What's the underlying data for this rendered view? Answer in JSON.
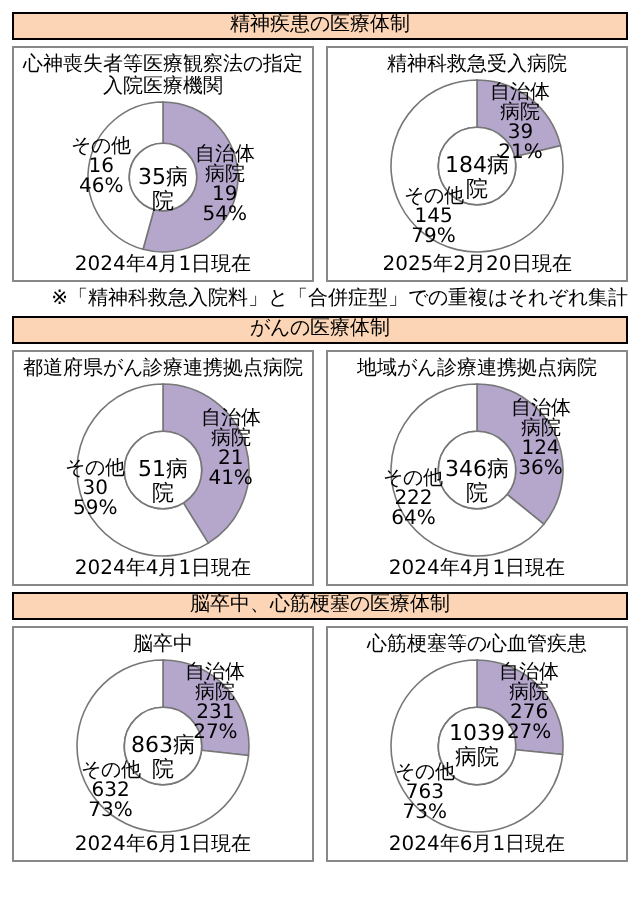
{
  "chart_data": [
    {
      "type": "donut",
      "title": "心神喪失者等医療観察法の指定",
      "subtitle": "入院医療機関",
      "categories": [
        "自治体病院",
        "その他"
      ],
      "values": [
        19,
        16
      ],
      "colors": [
        "#b5a6cc",
        "#ffffff"
      ],
      "value_labels": [
        "19\n54%",
        "16\n46%"
      ],
      "annotations": [
        "35病院",
        "2024年4月1日現在",
        "精神疾患の医療体制"
      ]
    },
    {
      "type": "donut",
      "title": "精神科救急受入病院",
      "categories": [
        "自治体病院",
        "その他"
      ],
      "values": [
        39,
        145
      ],
      "colors": [
        "#b5a6cc",
        "#ffffff"
      ],
      "value_labels": [
        "39\n21%",
        "145\n79%"
      ],
      "annotations": [
        "184病院",
        "2025年2月20日現在",
        "※「精神科救急入院料」と「合併症型」での重複はそれぞれ集計"
      ]
    },
    {
      "type": "donut",
      "title": "都道府県がん診療連携拠点病院",
      "categories": [
        "自治体病院",
        "その他"
      ],
      "values": [
        21,
        30
      ],
      "colors": [
        "#b5a6cc",
        "#ffffff"
      ],
      "value_labels": [
        "21\n41%",
        "30\n59%"
      ],
      "annotations": [
        "51病院",
        "2024年4月1日現在",
        "がんの医療体制"
      ]
    },
    {
      "type": "donut",
      "title": "地域がん診療連携拠点病院",
      "categories": [
        "自治体病院",
        "その他"
      ],
      "values": [
        124,
        222
      ],
      "colors": [
        "#b5a6cc",
        "#ffffff"
      ],
      "value_labels": [
        "124\n36%",
        "222\n64%"
      ],
      "annotations": [
        "346病院",
        "2024年4月1日現在"
      ]
    },
    {
      "type": "donut",
      "title": "脳卒中",
      "categories": [
        "自治体病院",
        "その他"
      ],
      "values": [
        231,
        632
      ],
      "colors": [
        "#b5a6cc",
        "#ffffff"
      ],
      "value_labels": [
        "231\n27%",
        "632\n73%"
      ],
      "annotations": [
        "863病院",
        "2024年6月1日現在",
        "脳卒中、心筋梗塞の医療体制"
      ]
    },
    {
      "type": "donut",
      "title": "心筋梗塞等の心血管疾患",
      "categories": [
        "自治体病院",
        "その他"
      ],
      "values": [
        276,
        763
      ],
      "colors": [
        "#b5a6cc",
        "#ffffff"
      ],
      "value_labels": [
        "276\n27%",
        "763\n73%"
      ],
      "annotations": [
        "1039病院",
        "2024年6月1日現在"
      ]
    }
  ]
}
